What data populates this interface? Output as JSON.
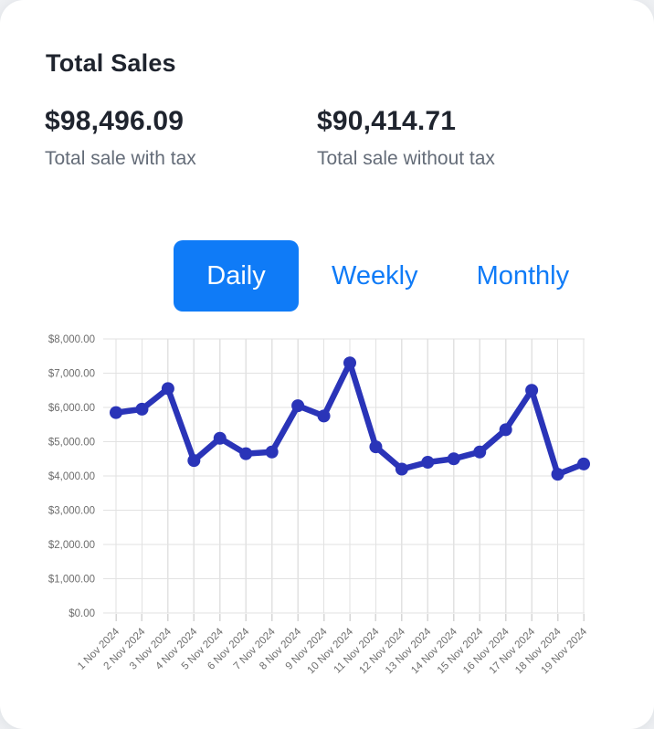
{
  "header": {
    "title": "Total Sales"
  },
  "stats": [
    {
      "value": "$98,496.09",
      "label": "Total sale with tax"
    },
    {
      "value": "$90,414.71",
      "label": "Total sale without tax"
    }
  ],
  "tabs": [
    {
      "label": "Daily",
      "active": true
    },
    {
      "label": "Weekly",
      "active": false
    },
    {
      "label": "Monthly",
      "active": false
    }
  ],
  "colors": {
    "accent_blue": "#0f7bf7",
    "line_blue": "#2a34b8",
    "grid": "#e2e2e2",
    "tick": "#d6d6d6",
    "axis_text": "#6d6d6d",
    "heading_text": "#1f242e",
    "muted_text": "#646c78"
  },
  "chart_data": {
    "type": "line",
    "categories": [
      "1 Nov 2024",
      "2 Nov 2024",
      "3 Nov 2024",
      "4 Nov 2024",
      "5 Nov 2024",
      "6 Nov 2024",
      "7 Nov 2024",
      "8 Nov 2024",
      "9 Nov 2024",
      "10 Nov 2024",
      "11 Nov 2024",
      "12 Nov 2024",
      "13 Nov 2024",
      "14 Nov 2024",
      "15 Nov 2024",
      "16 Nov 2024",
      "17 Nov 2024",
      "18 Nov 2024",
      "19 Nov 2024"
    ],
    "values": [
      5850,
      5950,
      6550,
      4450,
      5100,
      4650,
      4700,
      6050,
      5750,
      7300,
      4850,
      4200,
      4400,
      4500,
      4700,
      5350,
      6500,
      4050,
      4350
    ],
    "y_tick_labels": [
      "$0.00",
      "$1,000.00",
      "$2,000.00",
      "$3,000.00",
      "$4,000.00",
      "$5,000.00",
      "$6,000.00",
      "$7,000.00",
      "$8,000.00"
    ],
    "ylim": [
      0,
      8000
    ],
    "y_step": 1000,
    "grid": true,
    "legend": "none",
    "title": "",
    "xlabel": "",
    "ylabel": ""
  }
}
